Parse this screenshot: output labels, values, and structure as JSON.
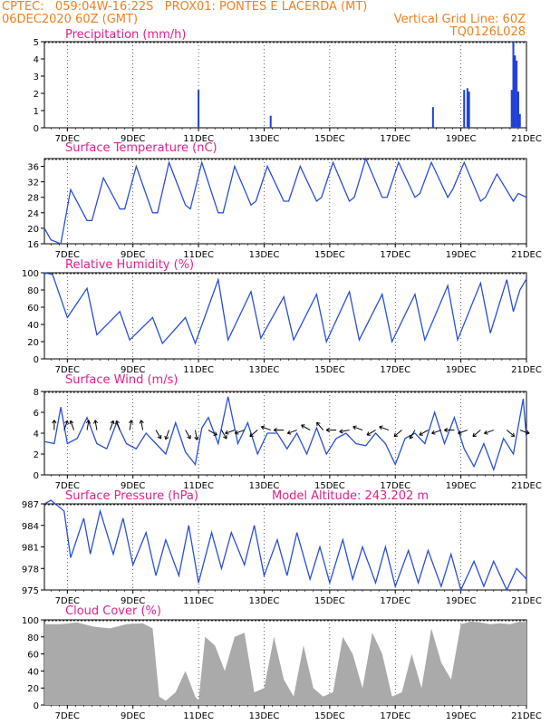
{
  "header": {
    "left_line1": "CPTEC:   059:04W-16:22S   PROX01: PONTES E LACERDA (MT)",
    "left_line2": "06DEC2020 60Z (GMT)",
    "right_line2": "Vertical Grid Line: 60Z",
    "right_line3": "TQ0126L028"
  },
  "colors": {
    "line": "#2a4fd6",
    "bar": "#1f3fd8",
    "cloud": "#aaaaaa",
    "title": "#e0208c",
    "header": "#f08020",
    "gridline": "#000000"
  },
  "chart_data": [
    {
      "type": "bar",
      "title": "Precipitation (mm/h)",
      "ylim": [
        0,
        5
      ],
      "yticks": [
        0,
        1,
        2,
        3,
        4,
        5
      ],
      "xlim": [
        6.3,
        21.0
      ],
      "xticks": [
        "7DEC",
        "9DEC",
        "11DEC",
        "13DEC",
        "15DEC",
        "17DEC",
        "19DEC",
        "21DEC"
      ],
      "xtick_values": [
        7,
        9,
        11,
        13,
        15,
        17,
        19,
        21
      ],
      "x": [
        11.0,
        13.2,
        18.15,
        19.1,
        19.2,
        19.25,
        20.55,
        20.6,
        20.65,
        20.7,
        20.75,
        20.8
      ],
      "values": [
        2.2,
        0.7,
        1.2,
        2.2,
        2.3,
        2.1,
        2.2,
        5.0,
        4.2,
        3.9,
        2.1,
        0.8
      ]
    },
    {
      "type": "line",
      "title": "Surface Temperature (nC)",
      "ylim": [
        16,
        38
      ],
      "yticks": [
        16,
        20,
        24,
        28,
        32,
        36
      ],
      "xlim": [
        6.3,
        21.0
      ],
      "xticks": [
        "7DEC",
        "9DEC",
        "11DEC",
        "13DEC",
        "15DEC",
        "17DEC",
        "19DEC",
        "21DEC"
      ],
      "xtick_values": [
        7,
        9,
        11,
        13,
        15,
        17,
        19,
        21
      ],
      "x": [
        6.3,
        6.5,
        6.8,
        7.1,
        7.6,
        7.75,
        8.1,
        8.6,
        8.75,
        9.1,
        9.6,
        9.75,
        10.1,
        10.6,
        10.75,
        11.1,
        11.6,
        11.75,
        12.1,
        12.6,
        12.75,
        13.1,
        13.6,
        13.75,
        14.1,
        14.6,
        14.75,
        15.1,
        15.6,
        15.75,
        16.1,
        16.6,
        16.75,
        17.1,
        17.6,
        17.75,
        18.1,
        18.6,
        18.75,
        19.1,
        19.6,
        19.75,
        20.1,
        20.6,
        20.75,
        21.0
      ],
      "values": [
        20,
        17,
        16,
        30,
        22,
        22,
        33,
        25,
        25,
        36,
        24,
        24,
        37,
        26,
        25,
        37,
        24,
        24,
        36,
        26,
        27,
        36,
        27,
        27,
        36,
        27,
        28,
        37,
        27,
        28,
        38,
        28,
        28,
        37,
        28,
        29,
        37,
        28,
        30,
        37,
        27,
        28,
        34,
        27,
        29,
        28
      ]
    },
    {
      "type": "line",
      "title": "Relative Humidity (%)",
      "ylim": [
        0,
        100
      ],
      "yticks": [
        0,
        20,
        40,
        60,
        80,
        100
      ],
      "xlim": [
        6.3,
        21.0
      ],
      "xticks": [
        "7DEC",
        "9DEC",
        "11DEC",
        "13DEC",
        "15DEC",
        "17DEC",
        "19DEC",
        "21DEC"
      ],
      "xtick_values": [
        7,
        9,
        11,
        13,
        15,
        17,
        19,
        21
      ],
      "x": [
        6.3,
        6.55,
        7.0,
        7.6,
        7.9,
        8.6,
        8.9,
        9.6,
        9.9,
        10.6,
        10.9,
        11.6,
        11.9,
        12.6,
        12.9,
        13.6,
        13.9,
        14.6,
        14.9,
        15.6,
        15.9,
        16.6,
        16.9,
        17.6,
        17.9,
        18.6,
        18.9,
        19.6,
        19.9,
        20.4,
        20.6,
        20.8,
        21.0
      ],
      "values": [
        100,
        98,
        48,
        82,
        28,
        55,
        22,
        48,
        18,
        48,
        18,
        92,
        22,
        78,
        24,
        72,
        22,
        75,
        20,
        78,
        22,
        75,
        20,
        75,
        22,
        85,
        22,
        88,
        30,
        92,
        55,
        80,
        93
      ]
    },
    {
      "type": "line",
      "title": "Surface Wind (m/s)",
      "ylim": [
        0,
        8
      ],
      "yticks": [
        0,
        2,
        4,
        6,
        8
      ],
      "xlim": [
        6.3,
        21.0
      ],
      "xticks": [
        "7DEC",
        "9DEC",
        "11DEC",
        "13DEC",
        "15DEC",
        "17DEC",
        "19DEC",
        "21DEC"
      ],
      "xtick_values": [
        7,
        9,
        11,
        13,
        15,
        17,
        19,
        21
      ],
      "x": [
        6.3,
        6.6,
        6.8,
        7.0,
        7.3,
        7.6,
        7.9,
        8.2,
        8.5,
        8.8,
        9.1,
        9.4,
        9.7,
        10.0,
        10.3,
        10.6,
        10.9,
        11.1,
        11.3,
        11.6,
        11.9,
        12.2,
        12.5,
        12.8,
        13.1,
        13.4,
        13.7,
        14.0,
        14.3,
        14.6,
        14.9,
        15.2,
        15.5,
        15.8,
        16.1,
        16.4,
        16.7,
        17.0,
        17.3,
        17.6,
        17.9,
        18.2,
        18.5,
        18.8,
        19.1,
        19.4,
        19.7,
        20.0,
        20.3,
        20.6,
        20.9,
        21.0
      ],
      "values": [
        3.2,
        3.0,
        6.5,
        3.0,
        3.5,
        5.5,
        3.0,
        2.5,
        5.0,
        3.0,
        2.5,
        4.0,
        3.0,
        2.0,
        5.0,
        2.2,
        1.0,
        4.5,
        5.5,
        3.0,
        7.5,
        3.0,
        5.0,
        2.0,
        4.0,
        4.0,
        2.5,
        4.0,
        2.0,
        4.5,
        2.0,
        3.5,
        4.0,
        3.0,
        2.8,
        4.0,
        3.0,
        1.0,
        3.5,
        4.0,
        3.0,
        6.0,
        3.0,
        5.5,
        2.5,
        0.8,
        3.0,
        0.5,
        3.5,
        2.0,
        7.3,
        3.5
      ]
    },
    {
      "type": "line",
      "title": "Surface Pressure (hPa)",
      "annotation": "Model Altitude: 243.202  m",
      "ylim": [
        975,
        987
      ],
      "yticks": [
        975,
        978,
        981,
        984,
        987
      ],
      "xlim": [
        6.3,
        21.0
      ],
      "xticks": [
        "7DEC",
        "9DEC",
        "11DEC",
        "13DEC",
        "15DEC",
        "17DEC",
        "19DEC",
        "21DEC"
      ],
      "xtick_values": [
        7,
        9,
        11,
        13,
        15,
        17,
        19,
        21
      ],
      "x": [
        6.3,
        6.5,
        6.9,
        7.1,
        7.5,
        7.7,
        8.0,
        8.4,
        8.7,
        9.0,
        9.4,
        9.7,
        10.0,
        10.4,
        10.7,
        11.0,
        11.4,
        11.7,
        12.0,
        12.4,
        12.7,
        13.0,
        13.4,
        13.7,
        14.0,
        14.4,
        14.7,
        15.0,
        15.4,
        15.7,
        16.0,
        16.4,
        16.7,
        17.0,
        17.4,
        17.7,
        18.0,
        18.4,
        18.7,
        19.0,
        19.4,
        19.7,
        20.0,
        20.4,
        20.7,
        21.0
      ],
      "values": [
        987,
        987.5,
        986,
        979.5,
        985,
        980,
        986,
        980,
        985,
        978.5,
        983,
        977,
        982,
        977,
        984,
        976,
        983,
        978,
        983,
        978.5,
        984,
        977,
        982,
        977,
        983,
        976.5,
        981,
        976,
        982,
        976.5,
        981,
        976,
        981,
        975.5,
        980.5,
        976,
        980.5,
        975.5,
        980,
        975,
        979,
        975.5,
        979,
        975,
        978,
        976.5
      ]
    },
    {
      "type": "area",
      "title": "Cloud Cover (%)",
      "ylim": [
        0,
        100
      ],
      "yticks": [
        0,
        20,
        40,
        60,
        80,
        100
      ],
      "xlim": [
        6.3,
        21.0
      ],
      "xticks": [
        "7DEC",
        "9DEC",
        "11DEC",
        "13DEC",
        "15DEC",
        "17DEC",
        "19DEC",
        "21DEC"
      ],
      "xtick_values": [
        7,
        9,
        11,
        13,
        15,
        17,
        19,
        21
      ],
      "x": [
        6.3,
        6.8,
        7.3,
        7.8,
        8.3,
        8.8,
        9.3,
        9.6,
        9.8,
        10.0,
        10.3,
        10.6,
        10.9,
        11.0,
        11.2,
        11.5,
        11.8,
        12.1,
        12.4,
        12.7,
        13.0,
        13.3,
        13.6,
        13.9,
        14.2,
        14.5,
        14.8,
        15.1,
        15.4,
        15.7,
        16.0,
        16.3,
        16.6,
        16.9,
        17.2,
        17.5,
        17.8,
        18.1,
        18.4,
        18.7,
        19.0,
        19.3,
        19.6,
        19.9,
        20.2,
        20.5,
        20.8,
        21.0
      ],
      "values": [
        95,
        95,
        97,
        92,
        90,
        95,
        96,
        90,
        10,
        5,
        15,
        40,
        10,
        5,
        80,
        70,
        40,
        80,
        85,
        15,
        20,
        80,
        30,
        10,
        70,
        20,
        10,
        15,
        80,
        60,
        20,
        85,
        60,
        10,
        15,
        60,
        20,
        90,
        50,
        30,
        95,
        98,
        97,
        95,
        96,
        95,
        98,
        97
      ]
    }
  ],
  "wind_arrows": {
    "x": [
      6.6,
      6.9,
      7.2,
      7.6,
      7.9,
      8.3,
      8.6,
      8.9,
      9.3,
      9.7,
      10.1,
      10.6,
      10.9,
      11.3,
      11.7,
      12.1,
      12.4,
      12.8,
      13.2,
      13.6,
      14.0,
      14.4,
      14.8,
      15.2,
      15.6,
      16.0,
      16.4,
      16.8,
      17.2,
      17.6,
      18.0,
      18.4,
      18.8,
      19.2,
      19.6,
      20.0,
      20.4,
      20.8
    ],
    "angle_deg": [
      90,
      70,
      110,
      80,
      100,
      70,
      110,
      80,
      100,
      300,
      250,
      300,
      280,
      330,
      300,
      200,
      200,
      220,
      160,
      180,
      200,
      150,
      130,
      180,
      190,
      160,
      210,
      160,
      220,
      240,
      210,
      200,
      180,
      200,
      220,
      200,
      320,
      340
    ]
  }
}
